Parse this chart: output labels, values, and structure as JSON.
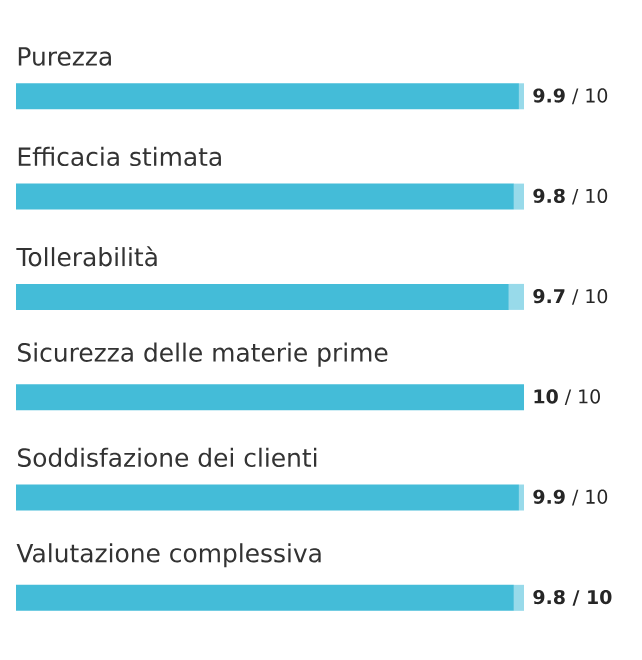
{
  "chart_data": {
    "type": "bar",
    "orientation": "horizontal",
    "stacked": true,
    "categories": [
      "Purezza",
      "Efficacia stimata",
      "Tollerabilità",
      "Sicurezza delle materie prime",
      "Soddisfazione dei clienti",
      "Valutazione complessiva"
    ],
    "series": [
      {
        "color": "#44bcd8",
        "values": [
          9.9,
          9.8,
          9.7,
          10,
          9.9,
          9.8
        ],
        "value_labels": [
          "**9.9** / 10",
          "**9.8** / 10",
          "**9.7** / 10",
          "**10** / 10",
          "**9.9** / 10",
          "**9.8 / 10**"
        ]
      },
      {
        "color": "#98daea",
        "values": [
          0.1,
          0.2,
          0.3,
          0,
          0.1,
          0.2
        ]
      }
    ],
    "xlim": [
      0,
      10
    ]
  }
}
